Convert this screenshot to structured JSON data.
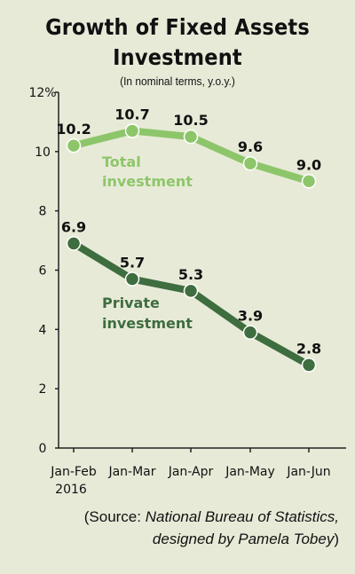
{
  "title_line1": "Growth of Fixed Assets",
  "title_line2": "Investment",
  "subtitle": "(In nominal terms, y.o.y.)",
  "source": {
    "line1_prefix": "(Source: ",
    "line1_italic": "National Bureau of Statistics,",
    "line2_italic": "designed by Pamela Tobey",
    "line2_suffix": ")"
  },
  "colors": {
    "background": "#e8ead8",
    "total": "#8dc66a",
    "private": "#3e6d3f",
    "axis": "#222222"
  },
  "chart_data": {
    "type": "line",
    "categories": [
      "Jan-Feb",
      "Jan-Mar",
      "Jan-Apr",
      "Jan-May",
      "Jan-Jun"
    ],
    "category_year_note": "2016",
    "y_ticks": [
      "0",
      "2",
      "4",
      "6",
      "8",
      "10",
      "12%"
    ],
    "ylim": [
      0,
      12
    ],
    "grid": false,
    "series": [
      {
        "name_line1": "Total",
        "name_line2": "investment",
        "values": [
          10.2,
          10.7,
          10.5,
          9.6,
          9.0
        ],
        "labels": [
          "10.2",
          "10.7",
          "10.5",
          "9.6",
          "9.0"
        ]
      },
      {
        "name_line1": "Private",
        "name_line2": "investment",
        "values": [
          6.9,
          5.7,
          5.3,
          3.9,
          2.8
        ],
        "labels": [
          "6.9",
          "5.7",
          "5.3",
          "3.9",
          "2.8"
        ]
      }
    ]
  }
}
